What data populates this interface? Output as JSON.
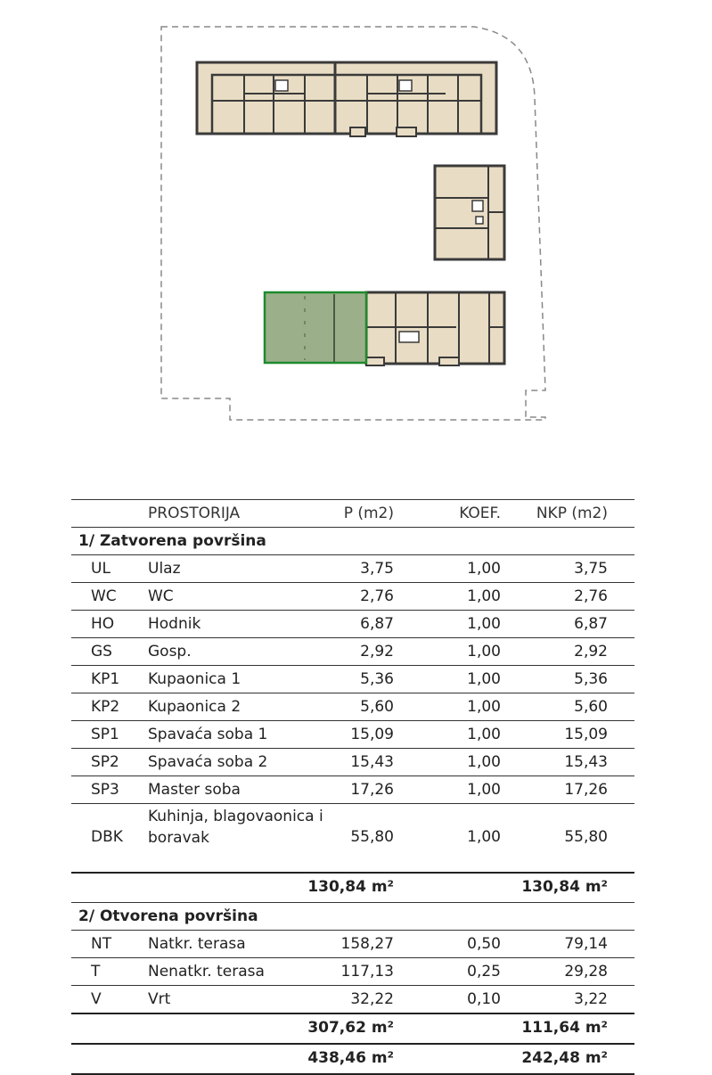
{
  "site_plan": {
    "highlight_color": "#1f8a2e",
    "highlight_fill": "#9bb08a",
    "building_fill": "#e8dcc4",
    "wall_color": "#3a3a3a"
  },
  "table": {
    "headers": {
      "room": "PROSTORIJA",
      "area": "P (m2)",
      "coef": "KOEF.",
      "net": "NKP (m2)"
    },
    "sections": [
      {
        "title": "1/ Zatvorena površina",
        "rows": [
          {
            "code": "UL",
            "name": "Ulaz",
            "area": "3,75",
            "coef": "1,00",
            "net": "3,75"
          },
          {
            "code": "WC",
            "name": "WC",
            "area": "2,76",
            "coef": "1,00",
            "net": "2,76"
          },
          {
            "code": "HO",
            "name": "Hodnik",
            "area": "6,87",
            "coef": "1,00",
            "net": "6,87"
          },
          {
            "code": "GS",
            "name": "Gosp.",
            "area": "2,92",
            "coef": "1,00",
            "net": "2,92"
          },
          {
            "code": "KP1",
            "name": "Kupaonica 1",
            "area": "5,36",
            "coef": "1,00",
            "net": "5,36"
          },
          {
            "code": "KP2",
            "name": "Kupaonica 2",
            "area": "5,60",
            "coef": "1,00",
            "net": "5,60"
          },
          {
            "code": "SP1",
            "name": "Spavaća soba 1",
            "area": "15,09",
            "coef": "1,00",
            "net": "15,09"
          },
          {
            "code": "SP2",
            "name": "Spavaća soba 2",
            "area": "15,43",
            "coef": "1,00",
            "net": "15,43"
          },
          {
            "code": "SP3",
            "name": "Master soba",
            "area": "17,26",
            "coef": "1,00",
            "net": "17,26"
          },
          {
            "code": "DBK",
            "name": "Kuhinja, blagovaonica i boravak",
            "area": "55,80",
            "coef": "1,00",
            "net": "55,80"
          }
        ],
        "total_area": "130,84 m²",
        "total_net": "130,84 m²"
      },
      {
        "title": "2/ Otvorena površina",
        "rows": [
          {
            "code": "NT",
            "name": "Natkr. terasa",
            "area": "158,27",
            "coef": "0,50",
            "net": "79,14"
          },
          {
            "code": "T",
            "name": "Nenatkr. terasa",
            "area": "117,13",
            "coef": "0,25",
            "net": "29,28"
          },
          {
            "code": "V",
            "name": "Vrt",
            "area": "32,22",
            "coef": "0,10",
            "net": "3,22"
          }
        ],
        "total_area": "307,62 m²",
        "total_net": "111,64 m²"
      }
    ],
    "grand_total_area": "438,46 m²",
    "grand_total_net": "242,48 m²"
  }
}
